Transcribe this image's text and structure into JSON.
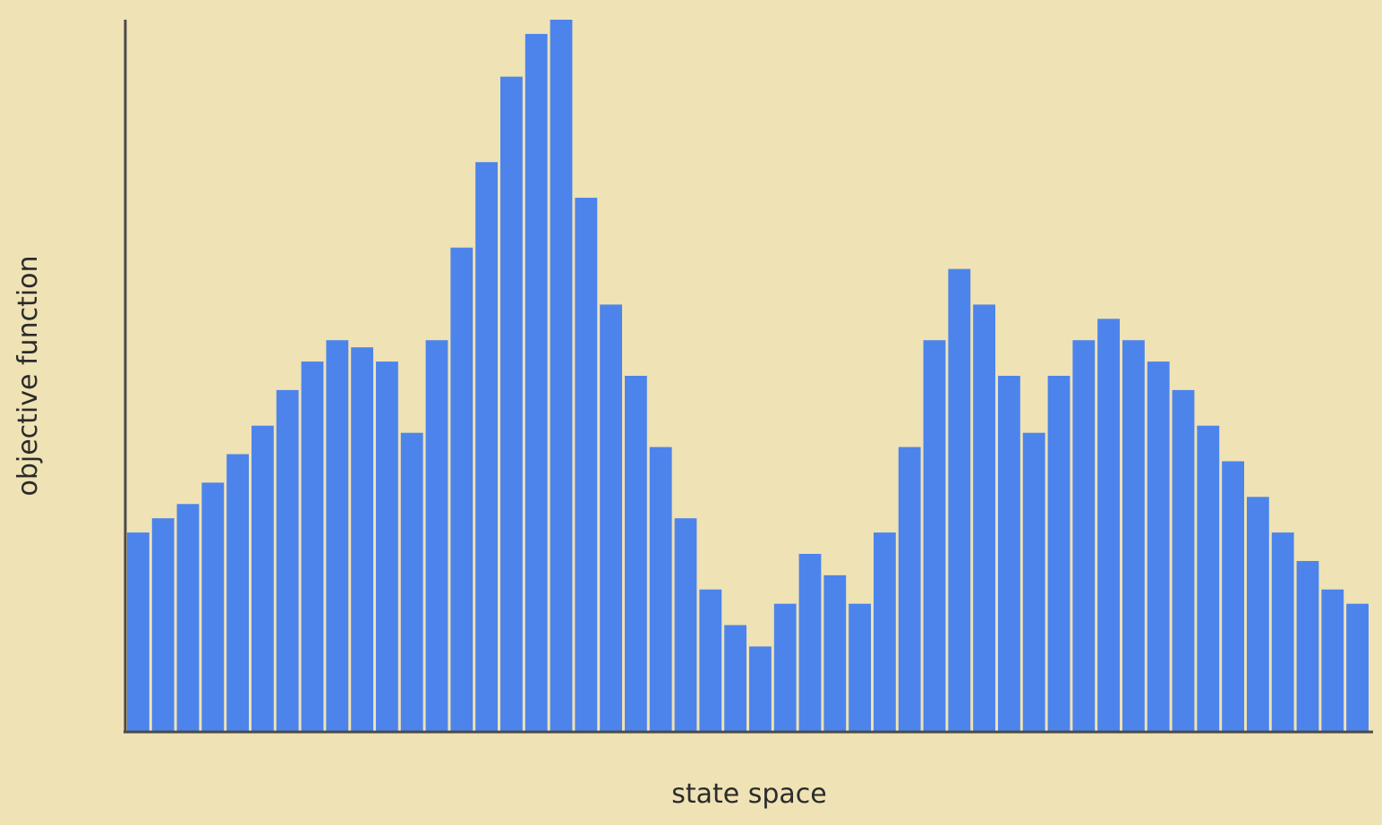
{
  "chart_data": {
    "type": "bar",
    "title": "",
    "xlabel": "state space",
    "ylabel": "objective function",
    "ylim": [
      0,
      100
    ],
    "grid": false,
    "bar_color": "#4c84ec",
    "background_color": "#efe2b5",
    "axis_color": "#4a4a4a",
    "values": [
      28,
      30,
      32,
      35,
      39,
      43,
      48,
      52,
      55,
      54,
      52,
      42,
      55,
      68,
      80,
      92,
      98,
      100,
      75,
      60,
      50,
      40,
      30,
      20,
      15,
      12,
      18,
      25,
      22,
      18,
      28,
      40,
      55,
      65,
      60,
      50,
      42,
      50,
      55,
      58,
      55,
      52,
      48,
      43,
      38,
      33,
      28,
      24,
      20,
      18
    ]
  }
}
